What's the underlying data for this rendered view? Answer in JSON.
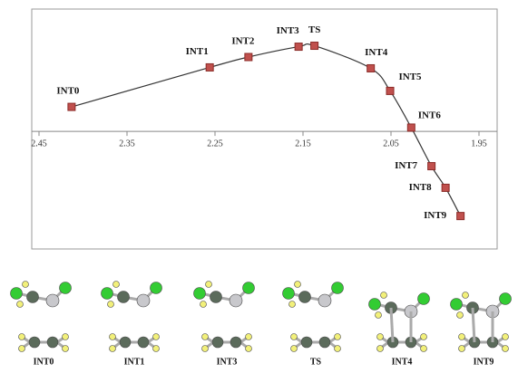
{
  "chart_data": {
    "type": "scatter-curve",
    "x": [
      2.413,
      2.256,
      2.212,
      2.155,
      2.137,
      2.073,
      2.051,
      2.027,
      2.004,
      1.988,
      1.971
    ],
    "values": [
      2.6,
      6.8,
      7.9,
      9.0,
      9.1,
      6.7,
      4.3,
      0.4,
      -3.7,
      -6.0,
      -9.0
    ],
    "point_labels": [
      "INT0",
      "INT1",
      "INT2",
      "INT3",
      "TS",
      "INT4",
      "INT5",
      "INT6",
      "INT7",
      "INT8",
      "INT9"
    ],
    "color": "#c0504d",
    "xlim": [
      2.45,
      1.95
    ],
    "xticks": [
      2.45,
      2.35,
      2.25,
      2.15,
      2.05,
      1.95
    ],
    "ylim": [
      -12.5,
      13
    ]
  },
  "molecules": [
    "INT0",
    "INT1",
    "INT3",
    "TS",
    "INT4",
    "INT9"
  ]
}
